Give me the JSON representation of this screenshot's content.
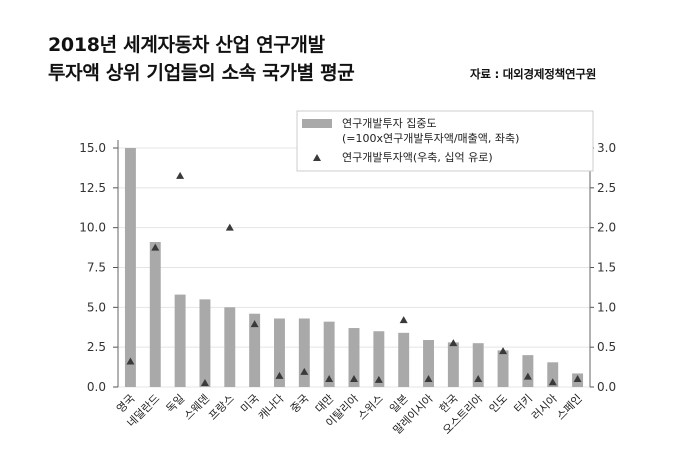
{
  "title_line1": "2018년 세계자동차 산업 연구개발",
  "title_line2": "투자액 상위 기업들의 소속 국가별 평균",
  "source": "자료 : 대외경제정책연구원",
  "chart_data": {
    "type": "bar",
    "categories": [
      "영국",
      "네덜란드",
      "독일",
      "스웨덴",
      "프랑스",
      "미국",
      "캐나다",
      "중국",
      "대만",
      "이탈리아",
      "스위스",
      "일본",
      "말레이시아",
      "한국",
      "오스트리아",
      "인도",
      "터키",
      "러시아",
      "스페인"
    ],
    "series": [
      {
        "name": "연구개발투자 집중도",
        "name_line2": "(=100x연구개발투자액/매출액, 좌축)",
        "type": "bar",
        "axis": "left",
        "values": [
          15.0,
          9.1,
          5.8,
          5.5,
          5.0,
          4.6,
          4.3,
          4.3,
          4.1,
          3.7,
          3.5,
          3.4,
          2.95,
          2.8,
          2.75,
          2.3,
          2.0,
          1.55,
          0.85
        ]
      },
      {
        "name": "연구개발투자액(우축, 십억 유로)",
        "type": "scatter",
        "axis": "right",
        "values": [
          0.32,
          1.75,
          2.65,
          0.05,
          2.0,
          0.79,
          0.14,
          0.19,
          0.1,
          0.1,
          0.09,
          0.84,
          0.1,
          0.55,
          0.1,
          0.45,
          0.13,
          0.06,
          0.1
        ]
      }
    ],
    "y_left": {
      "ylim": [
        0,
        15
      ],
      "ticks": [
        "0.0",
        "2.5",
        "5.0",
        "7.5",
        "10.0",
        "12.5",
        "15.0"
      ]
    },
    "y_right": {
      "ylim": [
        0,
        3
      ],
      "ticks": [
        "0.0",
        "0.5",
        "1.0",
        "1.5",
        "2.0",
        "2.5",
        "3.0"
      ]
    },
    "grid": true,
    "legend": "top-center",
    "colors": {
      "bar": "#a9a9a9",
      "marker": "#3a3a3a",
      "grid": "#e4e4e4"
    }
  }
}
